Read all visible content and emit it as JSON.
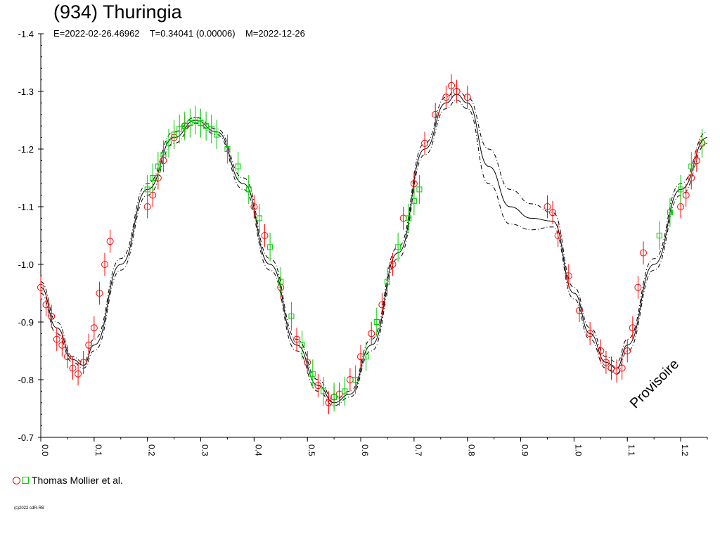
{
  "title": "(934) Thuringia",
  "subtitle": "E=2022-02-26.46962    T=0.34041 (0.00006)    M=2022-12-26",
  "legend_label": "Thomas Mollier et al.",
  "copyright": "(c)2022 cdR-RB",
  "watermark": "Provisoire",
  "colors": {
    "red_series": "#ff0000",
    "green_series": "#00cc00",
    "curve": "#000000"
  },
  "chart_data": {
    "type": "scatter",
    "title": "(934) Thuringia",
    "xlim": [
      0.0,
      1.25
    ],
    "ylim": [
      -1.4,
      -0.7
    ],
    "y_inverted": true,
    "x_ticks": [
      0.0,
      0.1,
      0.2,
      0.3,
      0.4,
      0.5,
      0.6,
      0.7,
      0.8,
      0.9,
      1.0,
      1.1,
      1.2
    ],
    "x_tick_labels": [
      "0.0",
      "0.1",
      "0.2",
      "0.3",
      "0.4",
      "0.5",
      "0.6",
      "0.7",
      "0.8",
      "0.9",
      "1.0",
      "1.1",
      "1.2"
    ],
    "y_ticks": [
      -1.4,
      -1.3,
      -1.2,
      -1.1,
      -1.0,
      -0.9,
      -0.8,
      -0.7
    ],
    "y_tick_labels": [
      "-1.4",
      "-1.3",
      "-1.2",
      "-1.1",
      "-1.0",
      "-0.9",
      "-0.8",
      "-0.7"
    ],
    "grid": false,
    "legend_position": "bottom-left",
    "fit_curve": {
      "x": [
        0.0,
        0.03,
        0.06,
        0.08,
        0.1,
        0.15,
        0.2,
        0.25,
        0.29,
        0.33,
        0.38,
        0.43,
        0.48,
        0.52,
        0.55,
        0.58,
        0.62,
        0.67,
        0.72,
        0.76,
        0.78,
        0.8,
        0.84,
        0.88,
        0.92,
        0.96,
        1.0,
        1.03,
        1.06,
        1.08,
        1.1,
        1.15,
        1.2,
        1.25
      ],
      "y": [
        -0.96,
        -0.89,
        -0.835,
        -0.825,
        -0.86,
        -1.0,
        -1.13,
        -1.22,
        -1.25,
        -1.23,
        -1.14,
        -1.0,
        -0.86,
        -0.79,
        -0.76,
        -0.775,
        -0.86,
        -1.02,
        -1.2,
        -1.28,
        -1.295,
        -1.28,
        -1.17,
        -1.1,
        -1.08,
        -1.075,
        -0.95,
        -0.88,
        -0.83,
        -0.82,
        -0.86,
        -1.0,
        -1.13,
        -1.22
      ],
      "upper_envelope": [
        -0.97,
        -0.9,
        -0.84,
        -0.83,
        -0.87,
        -1.01,
        -1.14,
        -1.23,
        -1.255,
        -1.235,
        -1.15,
        -1.01,
        -0.87,
        -0.8,
        -0.765,
        -0.78,
        -0.87,
        -1.03,
        -1.21,
        -1.29,
        -1.305,
        -1.29,
        -1.2,
        -1.13,
        -1.105,
        -1.09,
        -0.96,
        -0.89,
        -0.84,
        -0.83,
        -0.87,
        -1.01,
        -1.14,
        -1.23
      ],
      "lower_envelope": [
        -0.95,
        -0.88,
        -0.83,
        -0.82,
        -0.85,
        -0.99,
        -1.12,
        -1.21,
        -1.245,
        -1.225,
        -1.13,
        -0.99,
        -0.85,
        -0.78,
        -0.755,
        -0.77,
        -0.85,
        -1.01,
        -1.19,
        -1.27,
        -1.285,
        -1.27,
        -1.14,
        -1.07,
        -1.06,
        -1.065,
        -0.94,
        -0.87,
        -0.82,
        -0.81,
        -0.85,
        -0.99,
        -1.12,
        -1.21
      ]
    },
    "series": [
      {
        "name": "Thomas Mollier et al.",
        "marker": "circle",
        "color": "#ff0000",
        "x": [
          0.0,
          0.01,
          0.02,
          0.03,
          0.04,
          0.05,
          0.06,
          0.07,
          0.08,
          0.09,
          0.1,
          0.11,
          0.12,
          0.13,
          0.2,
          0.21,
          0.22,
          0.23,
          0.25,
          0.27,
          0.4,
          0.42,
          0.45,
          0.48,
          0.5,
          0.52,
          0.54,
          0.55,
          0.56,
          0.58,
          0.6,
          0.62,
          0.64,
          0.66,
          0.68,
          0.7,
          0.72,
          0.74,
          0.76,
          0.77,
          0.78,
          0.8,
          0.95,
          0.96,
          0.97,
          0.99,
          1.01,
          1.03,
          1.05,
          1.06,
          1.07,
          1.08,
          1.09,
          1.1,
          1.11,
          1.12,
          1.13,
          1.2,
          1.21,
          1.22,
          1.23,
          1.24
        ],
        "y": [
          -0.96,
          -0.93,
          -0.91,
          -0.87,
          -0.86,
          -0.84,
          -0.82,
          -0.81,
          -0.83,
          -0.86,
          -0.89,
          -0.95,
          -1.0,
          -1.04,
          -1.1,
          -1.12,
          -1.15,
          -1.18,
          -1.22,
          -1.24,
          -1.1,
          -1.05,
          -0.96,
          -0.87,
          -0.83,
          -0.79,
          -0.76,
          -0.77,
          -0.775,
          -0.8,
          -0.84,
          -0.88,
          -0.93,
          -1.0,
          -1.08,
          -1.14,
          -1.21,
          -1.26,
          -1.29,
          -1.31,
          -1.3,
          -1.29,
          -1.1,
          -1.09,
          -1.05,
          -0.98,
          -0.92,
          -0.88,
          -0.85,
          -0.83,
          -0.82,
          -0.815,
          -0.82,
          -0.85,
          -0.89,
          -0.96,
          -1.02,
          -1.1,
          -1.12,
          -1.15,
          -1.18,
          -1.21
        ],
        "error": 0.02
      },
      {
        "name": "Thomas Mollier et al.",
        "marker": "square",
        "color": "#00cc00",
        "x": [
          0.2,
          0.21,
          0.22,
          0.23,
          0.24,
          0.25,
          0.26,
          0.27,
          0.28,
          0.29,
          0.3,
          0.31,
          0.32,
          0.33,
          0.35,
          0.37,
          0.39,
          0.41,
          0.43,
          0.45,
          0.47,
          0.49,
          0.51,
          0.53,
          0.55,
          0.57,
          0.59,
          0.61,
          0.63,
          0.65,
          0.67,
          0.69,
          0.7,
          0.71,
          1.16,
          1.18,
          1.2,
          1.22,
          1.24
        ],
        "y": [
          -1.13,
          -1.15,
          -1.17,
          -1.19,
          -1.21,
          -1.225,
          -1.235,
          -1.24,
          -1.245,
          -1.25,
          -1.245,
          -1.24,
          -1.235,
          -1.225,
          -1.2,
          -1.17,
          -1.13,
          -1.08,
          -1.03,
          -0.97,
          -0.91,
          -0.86,
          -0.81,
          -0.78,
          -0.77,
          -0.78,
          -0.8,
          -0.84,
          -0.9,
          -0.97,
          -1.03,
          -1.08,
          -1.11,
          -1.13,
          -1.05,
          -1.09,
          -1.13,
          -1.17,
          -1.21
        ],
        "error": 0.025
      }
    ]
  }
}
